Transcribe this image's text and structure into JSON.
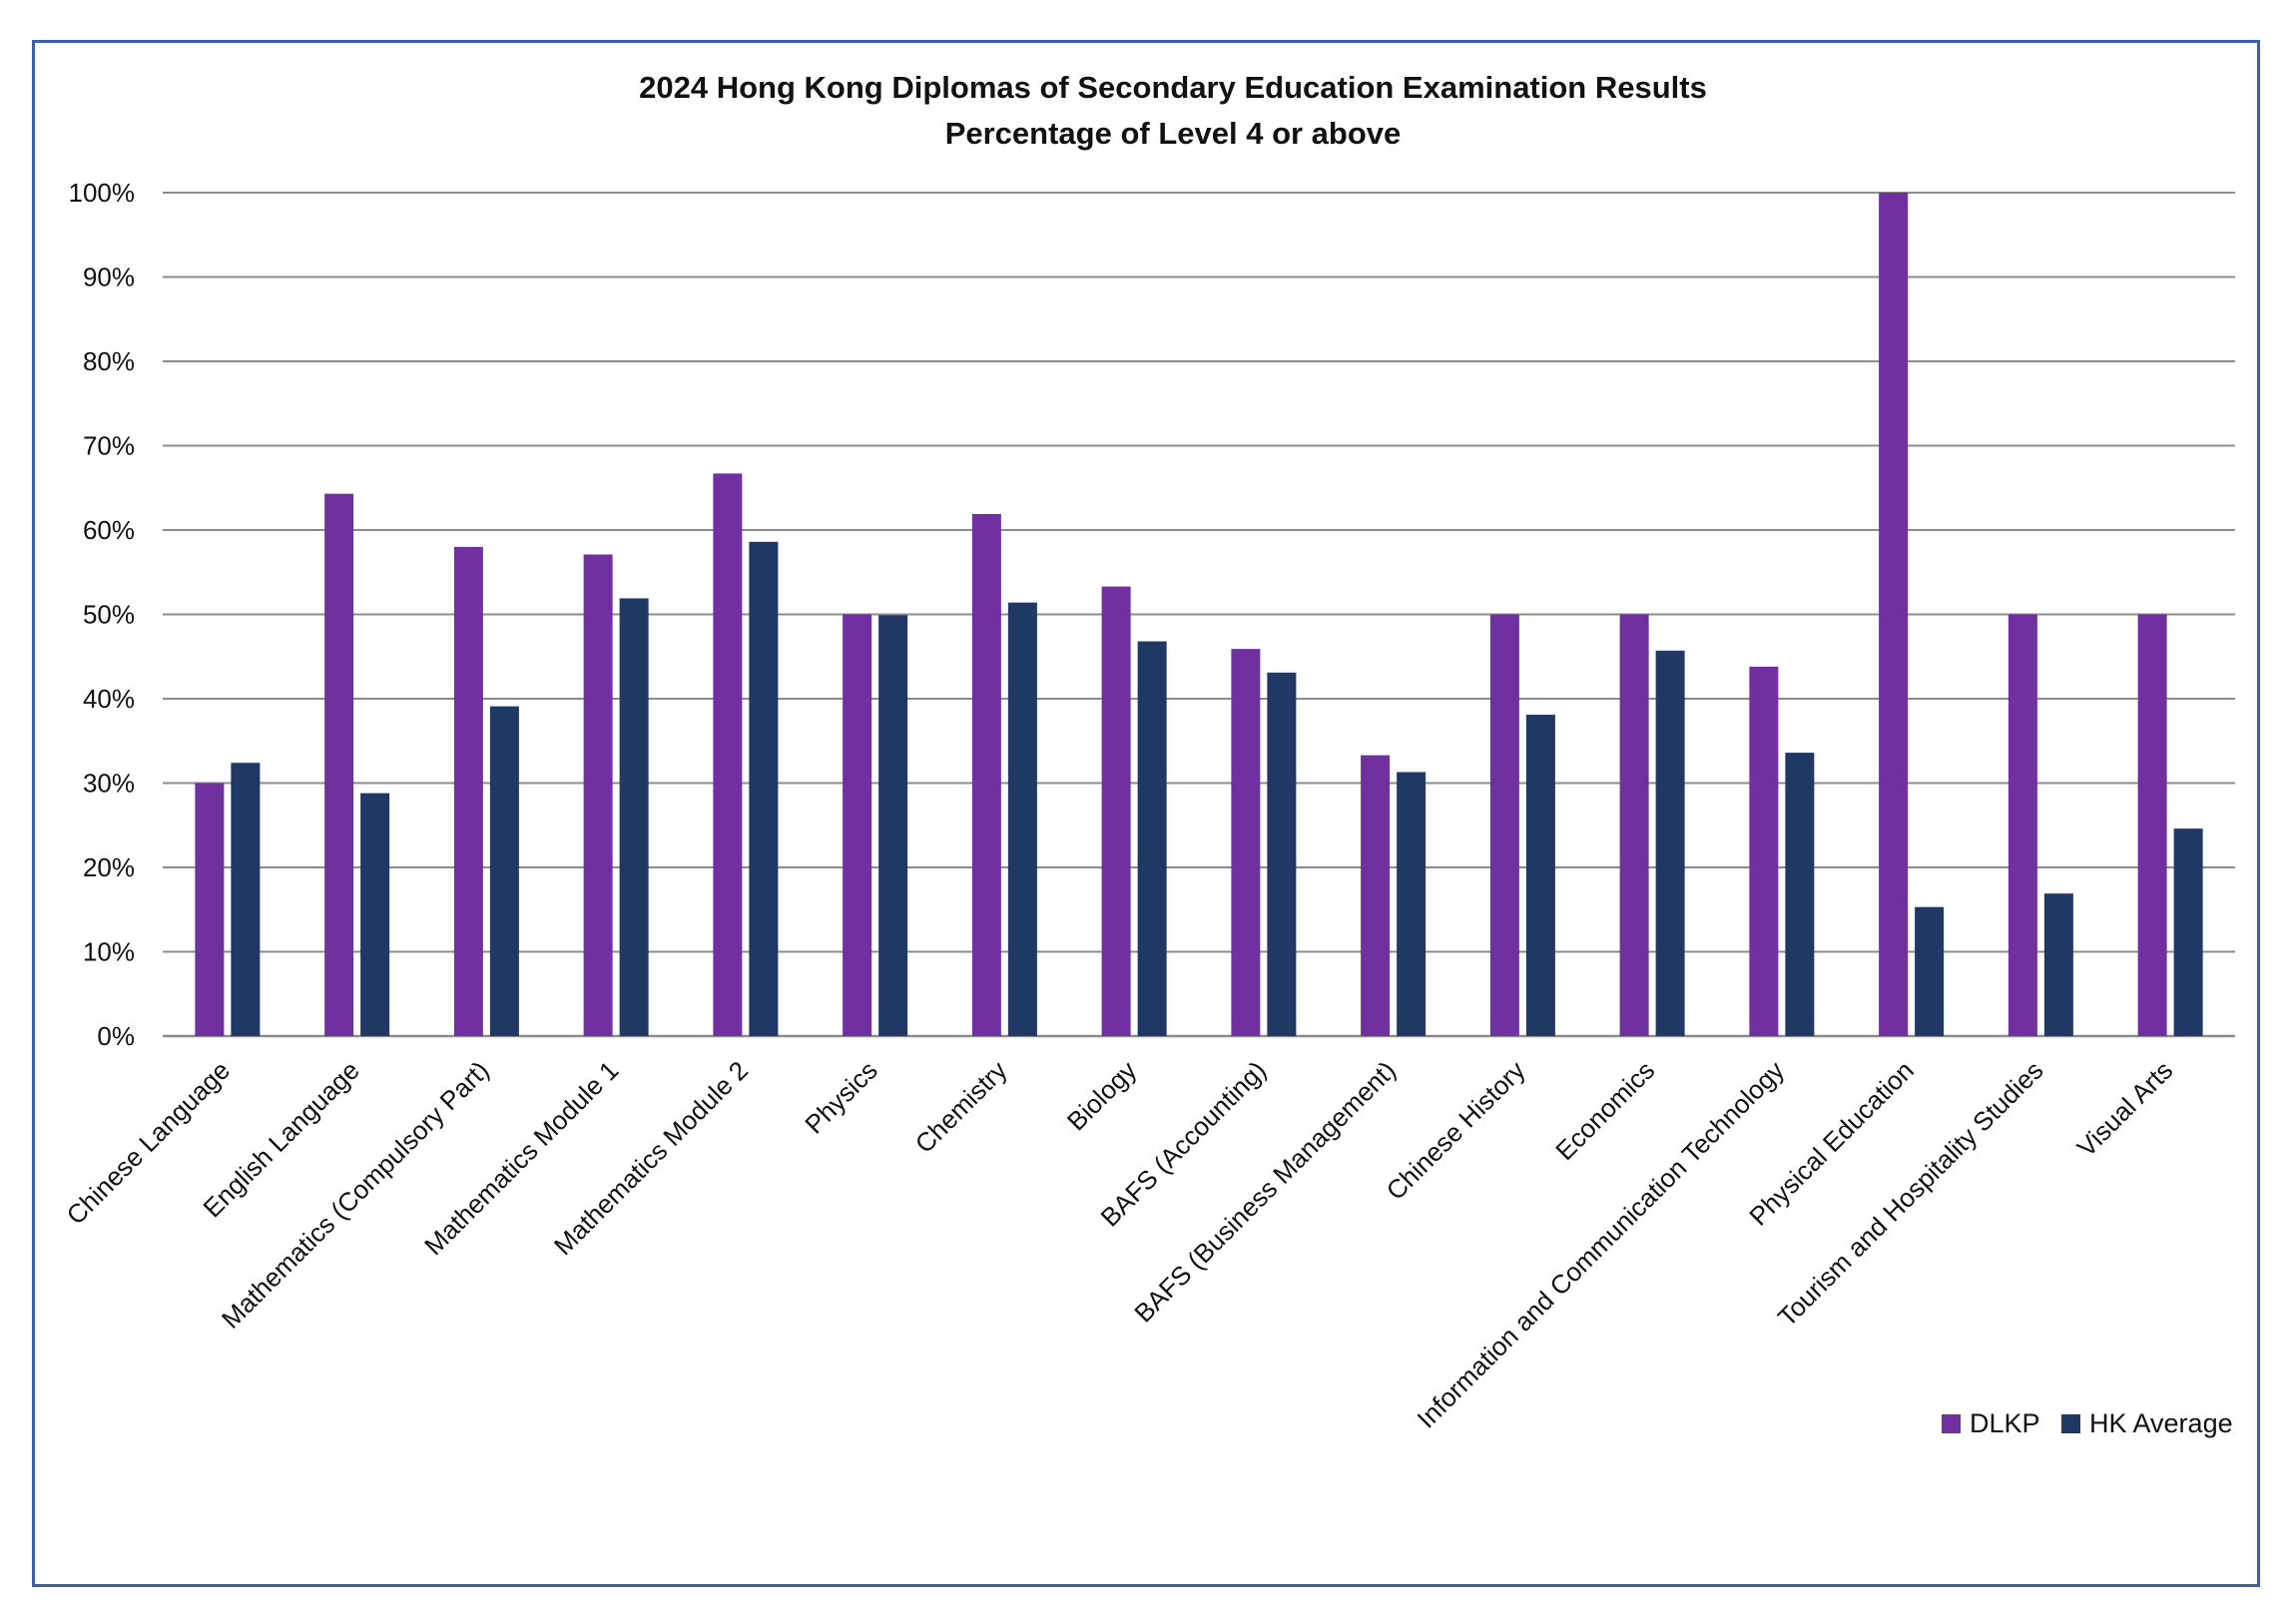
{
  "chart_data": {
    "type": "bar",
    "title": "2024 Hong Kong Diplomas of Secondary Education Examination Results",
    "subtitle": "Percentage of Level 4 or above",
    "xlabel": "",
    "ylabel": "",
    "ylim": [
      0,
      100
    ],
    "yticks": [
      "0%",
      "10%",
      "20%",
      "30%",
      "40%",
      "50%",
      "60%",
      "70%",
      "80%",
      "90%",
      "100%"
    ],
    "grid": true,
    "legend_position": "bottom-right",
    "categories": [
      "Chinese Language",
      "English Language",
      "Mathematics (Compulsory Part)",
      "Mathematics Module 1",
      "Mathematics Module 2",
      "Physics",
      "Chemistry",
      "Biology",
      "BAFS (Accounting)",
      "BAFS (Business Management)",
      "Chinese History",
      "Economics",
      "Information and Communication Technology",
      "Physical Education",
      "Tourism and Hospitality Studies",
      "Visual Arts"
    ],
    "series": [
      {
        "name": "DLKP",
        "color": "#7030a0",
        "values": [
          30,
          64.3,
          58,
          57.1,
          66.7,
          50,
          61.9,
          53.3,
          45.9,
          33.3,
          50,
          50,
          43.8,
          100,
          50,
          50
        ]
      },
      {
        "name": "HK Average",
        "color": "#203864",
        "values": [
          32.4,
          28.8,
          39.1,
          51.9,
          58.6,
          49.9,
          51.4,
          46.8,
          43.1,
          31.3,
          38.1,
          45.7,
          33.6,
          15.3,
          16.9,
          24.6
        ]
      }
    ],
    "colors": {
      "grid": "#8c8c8c",
      "axis": "#8c8c8c",
      "frame": "#3b5fa8"
    }
  }
}
